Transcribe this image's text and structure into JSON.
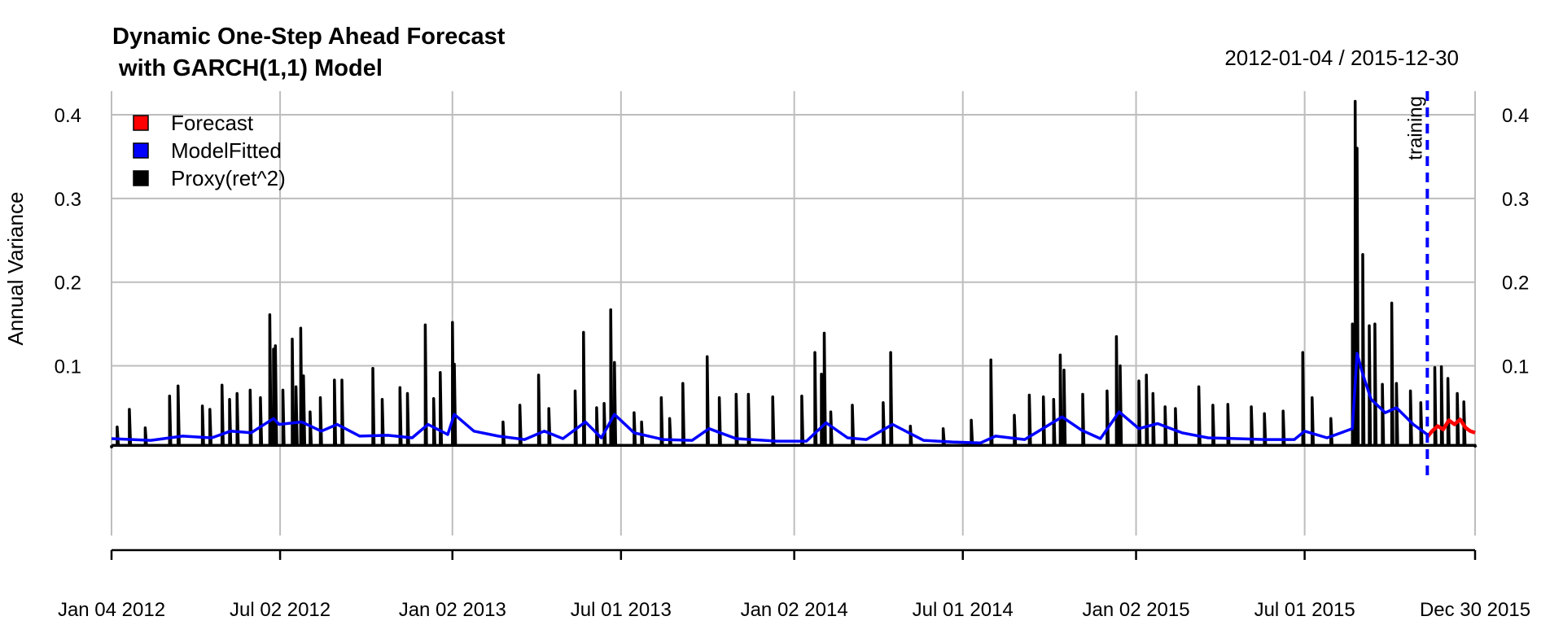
{
  "chart_data": {
    "type": "line",
    "title": "Dynamic One-Step Ahead Forecast",
    "subtitle": " with GARCH(1,1) Model",
    "date_range": "2012-01-04 / 2015-12-30",
    "ylabel": "Annual Variance",
    "xlabel": "",
    "ylim": [
      -0.02,
      0.42
    ],
    "y_ticks": [
      0.1,
      0.2,
      0.3,
      0.4
    ],
    "y_tick_labels": [
      "0.1",
      "0.2",
      "0.3",
      "0.4"
    ],
    "x_ticks": [
      "2012-01-04",
      "2012-07-02",
      "2013-01-02",
      "2013-07-01",
      "2014-01-02",
      "2014-07-01",
      "2015-01-02",
      "2015-07-01",
      "2015-12-30"
    ],
    "x_tick_labels": [
      "Jan 04 2012",
      "Jul 02 2012",
      "Jan 02 2013",
      "Jul 01 2013",
      "Jan 02 2014",
      "Jul 01 2014",
      "Jan 02 2015",
      "Jul 01 2015",
      "Dec 30 2015"
    ],
    "grid": true,
    "legend_position": "top-left",
    "legend": [
      {
        "label": "Forecast",
        "color": "#ff0000"
      },
      {
        "label": "ModelFitted",
        "color": "#0000ff"
      },
      {
        "label": "Proxy(ret^2)",
        "color": "#000000"
      }
    ],
    "annotations": [
      {
        "text": "training",
        "x": "2015-11-09",
        "style": "dashed vertical line",
        "color": "#0000ff"
      }
    ],
    "series": [
      {
        "name": "Proxy(ret^2)",
        "color": "#000000",
        "baseline": 0.005,
        "points": [
          [
            "2012-01-04",
            0.003
          ],
          [
            "2012-01-10",
            0.027
          ],
          [
            "2012-01-23",
            0.048
          ],
          [
            "2012-02-09",
            0.026
          ],
          [
            "2012-03-06",
            0.064
          ],
          [
            "2012-03-15",
            0.076
          ],
          [
            "2012-04-10",
            0.052
          ],
          [
            "2012-04-18",
            0.048
          ],
          [
            "2012-05-01",
            0.077
          ],
          [
            "2012-05-09",
            0.06
          ],
          [
            "2012-05-17",
            0.067
          ],
          [
            "2012-05-31",
            0.071
          ],
          [
            "2012-06-11",
            0.062
          ],
          [
            "2012-06-21",
            0.161
          ],
          [
            "2012-06-25",
            0.12
          ],
          [
            "2012-06-27",
            0.124
          ],
          [
            "2012-07-05",
            0.071
          ],
          [
            "2012-07-15",
            0.132
          ],
          [
            "2012-07-19",
            0.075
          ],
          [
            "2012-07-24",
            0.145
          ],
          [
            "2012-07-27",
            0.088
          ],
          [
            "2012-08-03",
            0.045
          ],
          [
            "2012-08-14",
            0.062
          ],
          [
            "2012-08-29",
            0.083
          ],
          [
            "2012-09-06",
            0.083
          ],
          [
            "2012-10-09",
            0.097
          ],
          [
            "2012-10-19",
            0.06
          ],
          [
            "2012-11-07",
            0.074
          ],
          [
            "2012-11-15",
            0.067
          ],
          [
            "2012-12-04",
            0.149
          ],
          [
            "2012-12-13",
            0.061
          ],
          [
            "2012-12-20",
            0.092
          ],
          [
            "2013-01-02",
            0.152
          ],
          [
            "2013-01-04",
            0.102
          ],
          [
            "2013-02-25",
            0.033
          ],
          [
            "2013-03-15",
            0.053
          ],
          [
            "2013-04-04",
            0.089
          ],
          [
            "2013-04-15",
            0.049
          ],
          [
            "2013-05-13",
            0.07
          ],
          [
            "2013-05-22",
            0.14
          ],
          [
            "2013-06-05",
            0.05
          ],
          [
            "2013-06-13",
            0.055
          ],
          [
            "2013-06-20",
            0.167
          ],
          [
            "2013-06-24",
            0.104
          ],
          [
            "2013-07-15",
            0.044
          ],
          [
            "2013-07-23",
            0.033
          ],
          [
            "2013-08-13",
            0.062
          ],
          [
            "2013-08-22",
            0.037
          ],
          [
            "2013-09-05",
            0.079
          ],
          [
            "2013-10-01",
            0.111
          ],
          [
            "2013-10-14",
            0.062
          ],
          [
            "2013-11-01",
            0.066
          ],
          [
            "2013-11-14",
            0.066
          ],
          [
            "2013-12-10",
            0.063
          ],
          [
            "2014-01-10",
            0.064
          ],
          [
            "2014-01-24",
            0.116
          ],
          [
            "2014-01-31",
            0.09
          ],
          [
            "2014-02-03",
            0.139
          ],
          [
            "2014-02-10",
            0.045
          ],
          [
            "2014-03-05",
            0.053
          ],
          [
            "2014-04-07",
            0.056
          ],
          [
            "2014-04-15",
            0.116
          ],
          [
            "2014-05-06",
            0.028
          ],
          [
            "2014-06-10",
            0.025
          ],
          [
            "2014-07-10",
            0.035
          ],
          [
            "2014-07-31",
            0.107
          ],
          [
            "2014-08-25",
            0.041
          ],
          [
            "2014-09-10",
            0.065
          ],
          [
            "2014-09-25",
            0.063
          ],
          [
            "2014-10-06",
            0.06
          ],
          [
            "2014-10-13",
            0.113
          ],
          [
            "2014-10-17",
            0.095
          ],
          [
            "2014-11-06",
            0.066
          ],
          [
            "2014-12-02",
            0.07
          ],
          [
            "2014-12-12",
            0.135
          ],
          [
            "2014-12-16",
            0.1
          ],
          [
            "2015-01-05",
            0.082
          ],
          [
            "2015-01-13",
            0.089
          ],
          [
            "2015-01-20",
            0.067
          ],
          [
            "2015-02-02",
            0.051
          ],
          [
            "2015-02-13",
            0.049
          ],
          [
            "2015-03-10",
            0.075
          ],
          [
            "2015-03-25",
            0.053
          ],
          [
            "2015-04-10",
            0.054
          ],
          [
            "2015-05-05",
            0.051
          ],
          [
            "2015-05-19",
            0.043
          ],
          [
            "2015-06-08",
            0.046
          ],
          [
            "2015-06-29",
            0.116
          ],
          [
            "2015-07-09",
            0.062
          ],
          [
            "2015-07-29",
            0.037
          ],
          [
            "2015-08-21",
            0.15
          ],
          [
            "2015-08-24",
            0.416
          ],
          [
            "2015-08-25",
            0.343
          ],
          [
            "2015-08-26",
            0.36
          ],
          [
            "2015-09-01",
            0.233
          ],
          [
            "2015-09-08",
            0.148
          ],
          [
            "2015-09-14",
            0.15
          ],
          [
            "2015-09-22",
            0.078
          ],
          [
            "2015-10-02",
            0.175
          ],
          [
            "2015-10-07",
            0.079
          ],
          [
            "2015-10-22",
            0.07
          ],
          [
            "2015-11-02",
            0.056
          ],
          [
            "2015-11-17",
            0.098
          ],
          [
            "2015-11-24",
            0.099
          ],
          [
            "2015-12-01",
            0.085
          ],
          [
            "2015-12-11",
            0.067
          ],
          [
            "2015-12-18",
            0.057
          ],
          [
            "2015-12-30",
            0.004
          ]
        ]
      },
      {
        "name": "ModelFitted",
        "color": "#0000ff",
        "points": [
          [
            "2012-01-04",
            0.013
          ],
          [
            "2012-02-15",
            0.011
          ],
          [
            "2012-03-20",
            0.016
          ],
          [
            "2012-04-20",
            0.014
          ],
          [
            "2012-05-10",
            0.022
          ],
          [
            "2012-06-01",
            0.02
          ],
          [
            "2012-06-25",
            0.037
          ],
          [
            "2012-07-01",
            0.03
          ],
          [
            "2012-07-25",
            0.033
          ],
          [
            "2012-08-15",
            0.022
          ],
          [
            "2012-09-01",
            0.03
          ],
          [
            "2012-09-25",
            0.016
          ],
          [
            "2012-10-25",
            0.017
          ],
          [
            "2012-11-20",
            0.014
          ],
          [
            "2012-12-07",
            0.03
          ],
          [
            "2012-12-28",
            0.018
          ],
          [
            "2013-01-04",
            0.042
          ],
          [
            "2013-01-25",
            0.022
          ],
          [
            "2013-02-20",
            0.016
          ],
          [
            "2013-03-20",
            0.012
          ],
          [
            "2013-04-10",
            0.022
          ],
          [
            "2013-04-30",
            0.013
          ],
          [
            "2013-05-24",
            0.033
          ],
          [
            "2013-06-10",
            0.014
          ],
          [
            "2013-06-24",
            0.042
          ],
          [
            "2013-07-15",
            0.02
          ],
          [
            "2013-08-15",
            0.012
          ],
          [
            "2013-09-15",
            0.011
          ],
          [
            "2013-10-03",
            0.025
          ],
          [
            "2013-11-01",
            0.013
          ],
          [
            "2013-12-15",
            0.01
          ],
          [
            "2014-01-15",
            0.01
          ],
          [
            "2014-02-05",
            0.032
          ],
          [
            "2014-02-28",
            0.014
          ],
          [
            "2014-03-20",
            0.012
          ],
          [
            "2014-04-17",
            0.03
          ],
          [
            "2014-05-20",
            0.011
          ],
          [
            "2014-06-20",
            0.009
          ],
          [
            "2014-07-20",
            0.008
          ],
          [
            "2014-08-05",
            0.016
          ],
          [
            "2014-09-05",
            0.012
          ],
          [
            "2014-10-15",
            0.039
          ],
          [
            "2014-11-05",
            0.023
          ],
          [
            "2014-11-25",
            0.013
          ],
          [
            "2014-12-15",
            0.045
          ],
          [
            "2015-01-05",
            0.025
          ],
          [
            "2015-01-25",
            0.031
          ],
          [
            "2015-02-20",
            0.02
          ],
          [
            "2015-03-20",
            0.014
          ],
          [
            "2015-04-20",
            0.013
          ],
          [
            "2015-05-20",
            0.012
          ],
          [
            "2015-06-20",
            0.012
          ],
          [
            "2015-07-01",
            0.022
          ],
          [
            "2015-07-25",
            0.014
          ],
          [
            "2015-08-21",
            0.025
          ],
          [
            "2015-08-26",
            0.115
          ],
          [
            "2015-09-01",
            0.09
          ],
          [
            "2015-09-10",
            0.06
          ],
          [
            "2015-09-25",
            0.044
          ],
          [
            "2015-10-07",
            0.05
          ],
          [
            "2015-10-25",
            0.03
          ],
          [
            "2015-11-09",
            0.018
          ]
        ]
      },
      {
        "name": "Forecast",
        "color": "#ff0000",
        "points": [
          [
            "2015-11-09",
            0.015
          ],
          [
            "2015-11-14",
            0.022
          ],
          [
            "2015-11-20",
            0.028
          ],
          [
            "2015-11-26",
            0.024
          ],
          [
            "2015-12-02",
            0.035
          ],
          [
            "2015-12-08",
            0.03
          ],
          [
            "2015-12-14",
            0.036
          ],
          [
            "2015-12-20",
            0.026
          ],
          [
            "2015-12-25",
            0.022
          ],
          [
            "2015-12-30",
            0.02
          ]
        ]
      }
    ]
  }
}
